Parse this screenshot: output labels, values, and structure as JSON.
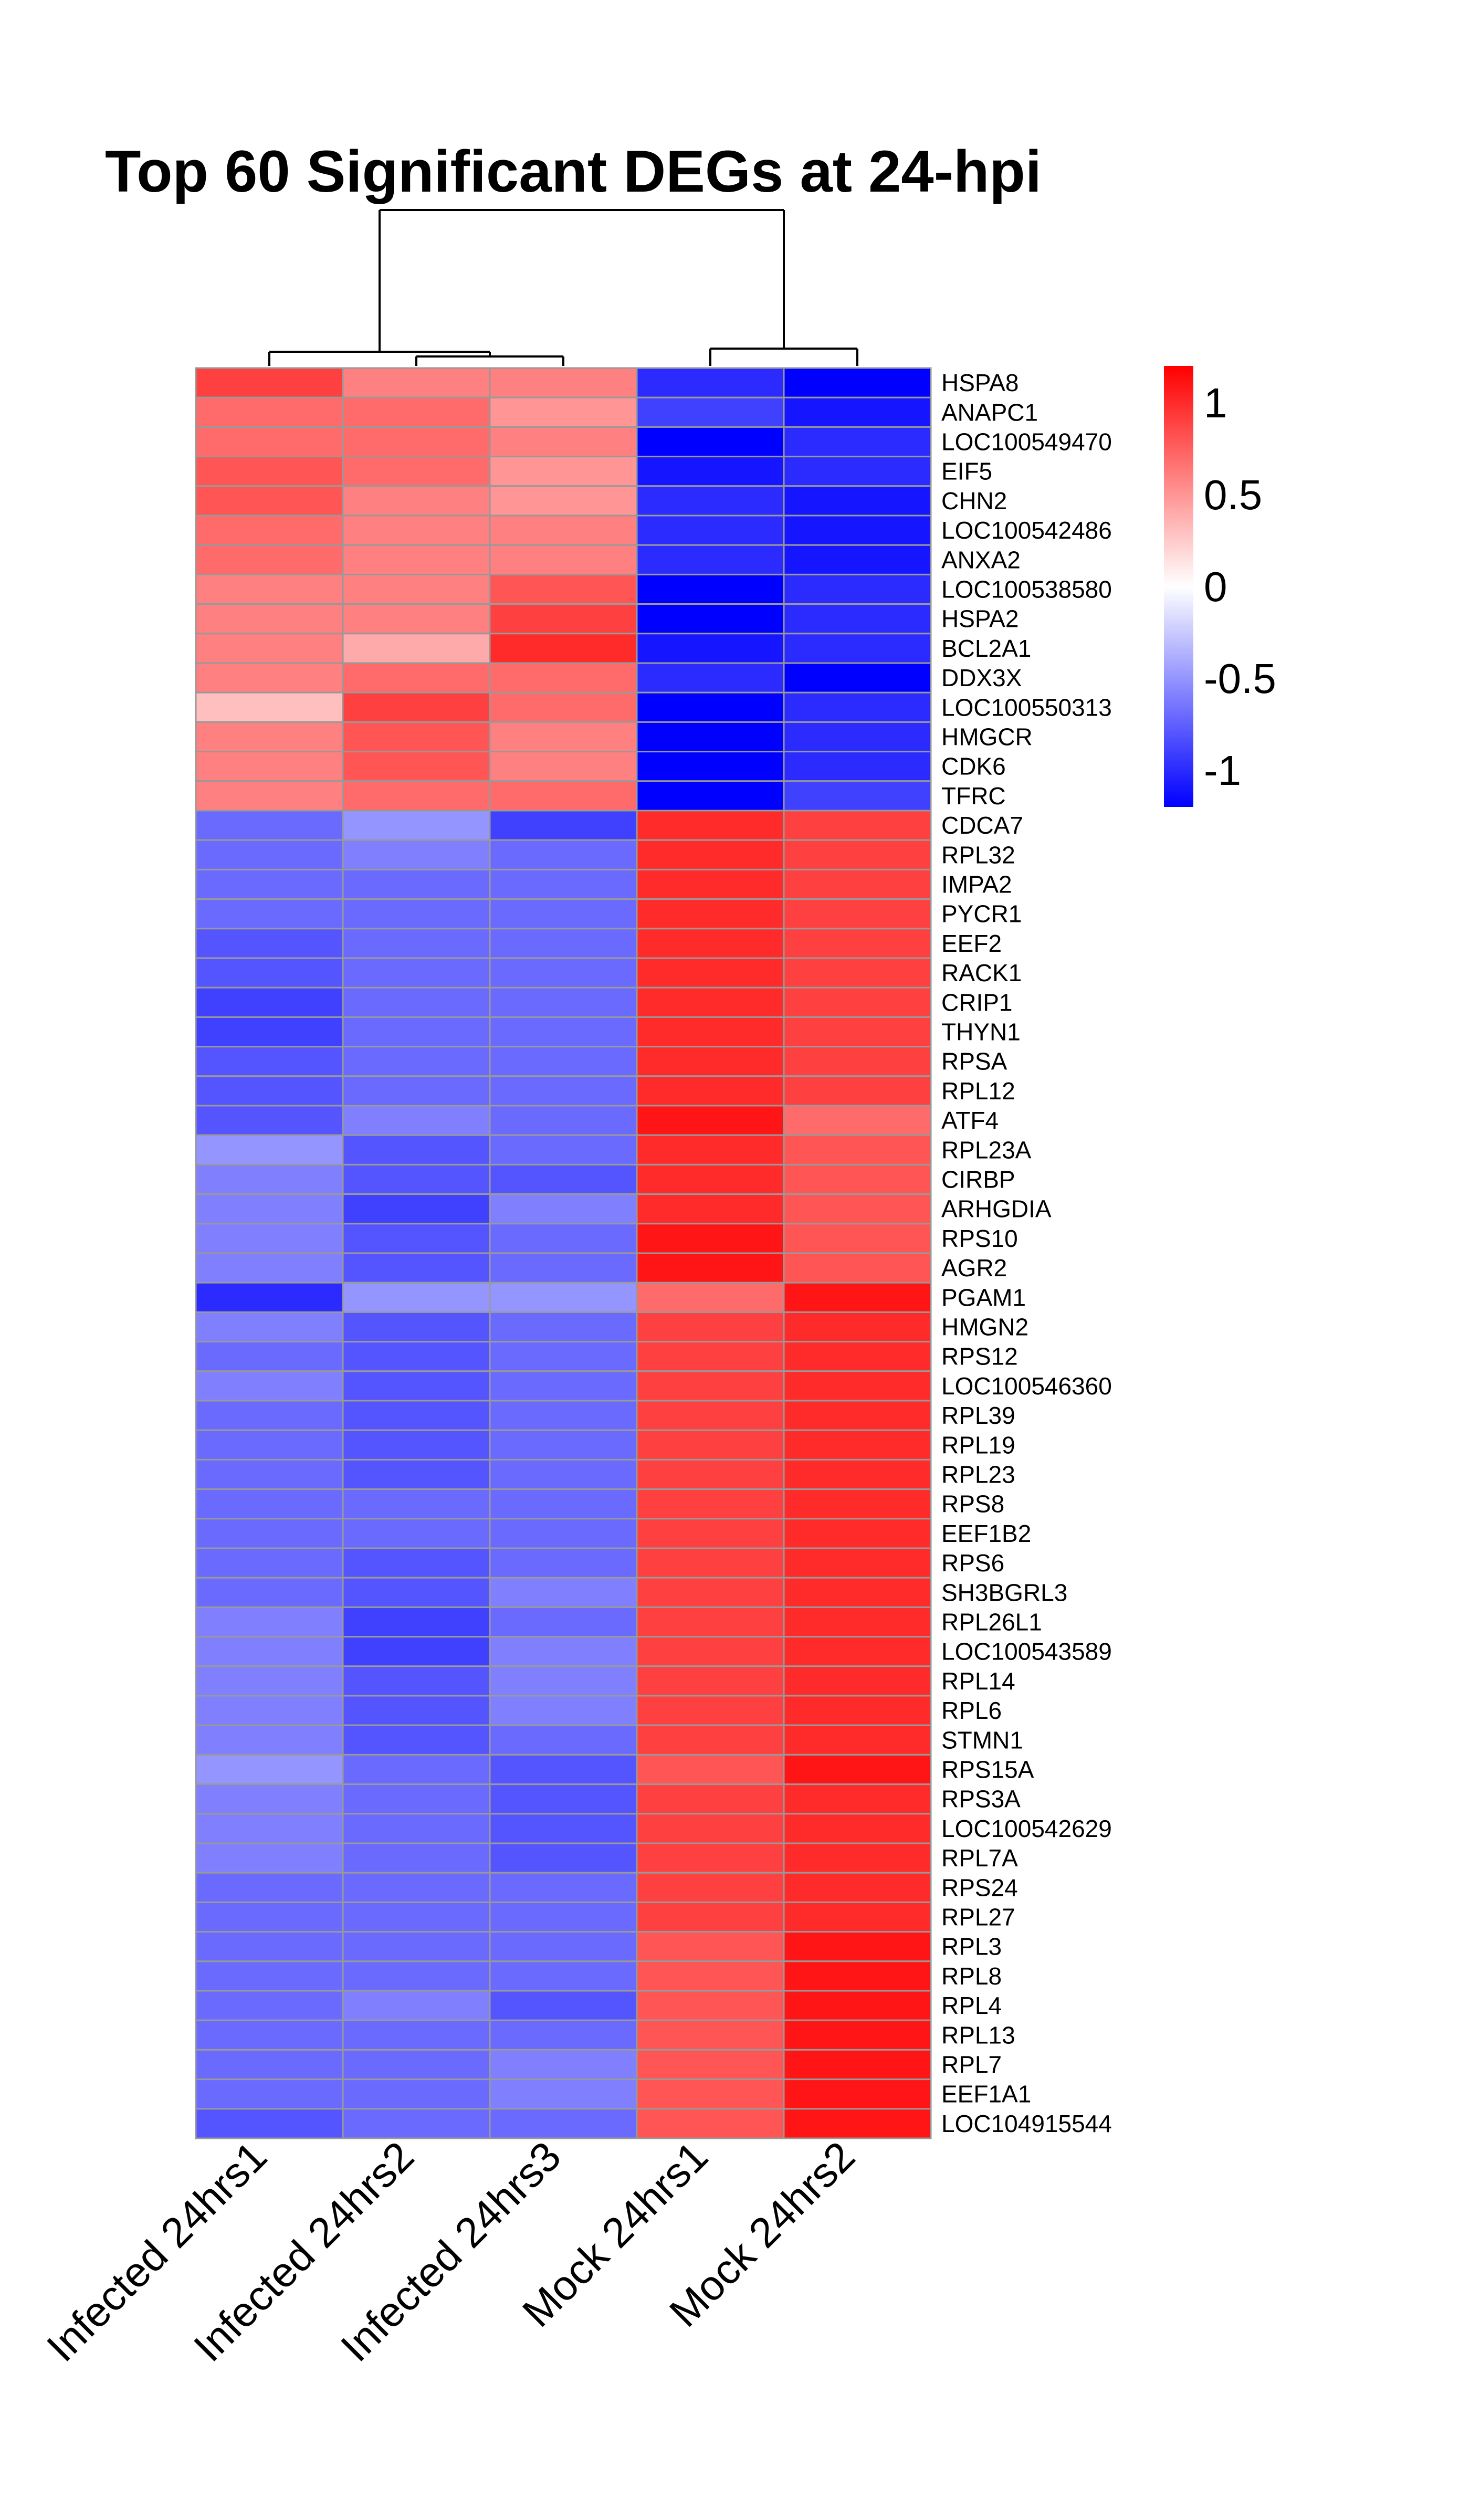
{
  "chart_data": {
    "type": "heatmap",
    "title": "Top 60 Significant DEGs at 24-hpi",
    "columns": [
      "Infected 24hrs1",
      "Infected 24hrs2",
      "Infected 24hrs3",
      "Mock 24hrs1",
      "Mock 24hrs2"
    ],
    "rows": [
      "HSPA8",
      "ANAPC1",
      "LOC100549470",
      "EIF5",
      "CHN2",
      "LOC100542486",
      "ANXA2",
      "LOC100538580",
      "HSPA2",
      "BCL2A1",
      "DDX3X",
      "LOC100550313",
      "HMGCR",
      "CDK6",
      "TFRC",
      "CDCA7",
      "RPL32",
      "IMPA2",
      "PYCR1",
      "EEF2",
      "RACK1",
      "CRIP1",
      "THYN1",
      "RPSA",
      "RPL12",
      "ATF4",
      "RPL23A",
      "CIRBP",
      "ARHGDIA",
      "RPS10",
      "AGR2",
      "PGAM1",
      "HMGN2",
      "RPS12",
      "LOC100546360",
      "RPL39",
      "RPL19",
      "RPL23",
      "RPS8",
      "EEF1B2",
      "RPS6",
      "SH3BGRL3",
      "RPL26L1",
      "LOC100543589",
      "RPL14",
      "RPL6",
      "STMN1",
      "RPS15A",
      "RPS3A",
      "LOC100542629",
      "RPL7A",
      "RPS24",
      "RPL27",
      "RPL3",
      "RPL8",
      "RPL4",
      "RPL13",
      "RPL7",
      "EEF1A1",
      "LOC104915544"
    ],
    "values": [
      [
        0.9,
        0.6,
        0.6,
        -1.0,
        -1.2
      ],
      [
        0.7,
        0.7,
        0.5,
        -0.9,
        -1.1
      ],
      [
        0.7,
        0.7,
        0.6,
        -1.2,
        -1.0
      ],
      [
        0.8,
        0.7,
        0.5,
        -1.1,
        -1.0
      ],
      [
        0.8,
        0.6,
        0.5,
        -1.0,
        -1.1
      ],
      [
        0.7,
        0.6,
        0.6,
        -1.0,
        -1.1
      ],
      [
        0.7,
        0.6,
        0.6,
        -1.0,
        -1.1
      ],
      [
        0.6,
        0.6,
        0.8,
        -1.2,
        -1.0
      ],
      [
        0.6,
        0.6,
        0.9,
        -1.2,
        -1.0
      ],
      [
        0.6,
        0.4,
        1.0,
        -1.1,
        -1.0
      ],
      [
        0.6,
        0.7,
        0.7,
        -1.0,
        -1.2
      ],
      [
        0.3,
        0.9,
        0.7,
        -1.2,
        -1.0
      ],
      [
        0.6,
        0.8,
        0.6,
        -1.2,
        -1.0
      ],
      [
        0.6,
        0.8,
        0.6,
        -1.2,
        -1.0
      ],
      [
        0.6,
        0.7,
        0.7,
        -1.2,
        -0.9
      ],
      [
        -0.7,
        -0.5,
        -0.9,
        1.0,
        0.9
      ],
      [
        -0.7,
        -0.6,
        -0.7,
        1.0,
        0.9
      ],
      [
        -0.7,
        -0.7,
        -0.7,
        1.0,
        0.9
      ],
      [
        -0.7,
        -0.7,
        -0.7,
        1.0,
        0.9
      ],
      [
        -0.8,
        -0.7,
        -0.7,
        1.0,
        0.9
      ],
      [
        -0.8,
        -0.7,
        -0.7,
        1.0,
        0.9
      ],
      [
        -0.9,
        -0.7,
        -0.7,
        1.0,
        0.9
      ],
      [
        -0.9,
        -0.7,
        -0.7,
        1.0,
        0.9
      ],
      [
        -0.8,
        -0.7,
        -0.7,
        1.0,
        0.9
      ],
      [
        -0.8,
        -0.7,
        -0.7,
        1.0,
        0.9
      ],
      [
        -0.8,
        -0.6,
        -0.7,
        1.1,
        0.7
      ],
      [
        -0.5,
        -0.8,
        -0.7,
        1.0,
        0.8
      ],
      [
        -0.6,
        -0.8,
        -0.8,
        1.0,
        0.8
      ],
      [
        -0.6,
        -0.9,
        -0.6,
        1.0,
        0.8
      ],
      [
        -0.6,
        -0.8,
        -0.7,
        1.1,
        0.8
      ],
      [
        -0.6,
        -0.8,
        -0.7,
        1.1,
        0.8
      ],
      [
        -1.0,
        -0.5,
        -0.5,
        0.7,
        1.1
      ],
      [
        -0.6,
        -0.8,
        -0.7,
        0.9,
        1.0
      ],
      [
        -0.7,
        -0.8,
        -0.7,
        0.9,
        1.0
      ],
      [
        -0.6,
        -0.8,
        -0.7,
        0.9,
        1.0
      ],
      [
        -0.7,
        -0.8,
        -0.7,
        0.9,
        1.0
      ],
      [
        -0.7,
        -0.8,
        -0.7,
        0.9,
        1.0
      ],
      [
        -0.7,
        -0.8,
        -0.7,
        0.9,
        1.0
      ],
      [
        -0.7,
        -0.7,
        -0.7,
        0.9,
        1.0
      ],
      [
        -0.7,
        -0.7,
        -0.7,
        0.9,
        1.0
      ],
      [
        -0.7,
        -0.8,
        -0.7,
        0.9,
        1.0
      ],
      [
        -0.7,
        -0.8,
        -0.6,
        0.9,
        1.0
      ],
      [
        -0.6,
        -0.9,
        -0.7,
        0.9,
        1.0
      ],
      [
        -0.6,
        -0.9,
        -0.6,
        0.9,
        1.0
      ],
      [
        -0.6,
        -0.8,
        -0.6,
        0.9,
        1.0
      ],
      [
        -0.6,
        -0.8,
        -0.6,
        0.9,
        1.0
      ],
      [
        -0.6,
        -0.8,
        -0.7,
        0.9,
        1.0
      ],
      [
        -0.5,
        -0.7,
        -0.8,
        0.8,
        1.1
      ],
      [
        -0.6,
        -0.7,
        -0.8,
        0.9,
        1.0
      ],
      [
        -0.6,
        -0.7,
        -0.8,
        0.9,
        1.0
      ],
      [
        -0.6,
        -0.7,
        -0.8,
        0.9,
        1.0
      ],
      [
        -0.7,
        -0.7,
        -0.7,
        0.9,
        1.0
      ],
      [
        -0.7,
        -0.7,
        -0.7,
        0.9,
        1.0
      ],
      [
        -0.7,
        -0.7,
        -0.7,
        0.8,
        1.1
      ],
      [
        -0.7,
        -0.7,
        -0.7,
        0.8,
        1.1
      ],
      [
        -0.7,
        -0.6,
        -0.8,
        0.8,
        1.1
      ],
      [
        -0.7,
        -0.7,
        -0.7,
        0.8,
        1.1
      ],
      [
        -0.7,
        -0.7,
        -0.6,
        0.8,
        1.1
      ],
      [
        -0.7,
        -0.7,
        -0.6,
        0.8,
        1.1
      ],
      [
        -0.8,
        -0.7,
        -0.7,
        0.8,
        1.1
      ]
    ],
    "color_scale": {
      "min": -1.2,
      "max": 1.2,
      "low": "#0000ff",
      "mid": "#ffffff",
      "high": "#ff0000"
    },
    "legend": {
      "ticks": [
        1,
        0.5,
        0,
        -0.5,
        -1
      ],
      "placement": "right"
    },
    "column_dendrogram": true,
    "cell_border": "#999999"
  }
}
